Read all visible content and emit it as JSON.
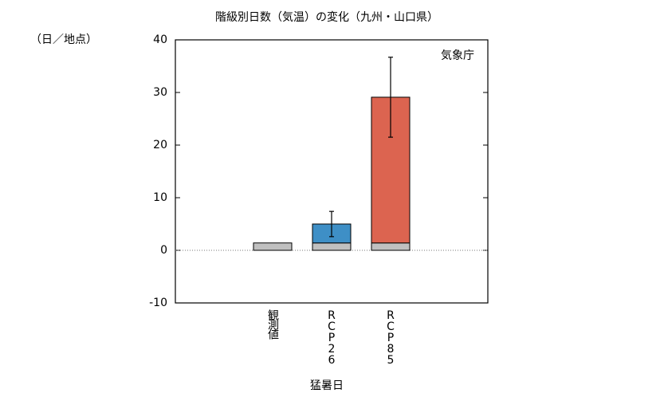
{
  "chart_data": {
    "type": "bar",
    "title": "階級別日数（気温）の変化（九州・山口県）",
    "y_label": "（日／地点）",
    "x_label": "猛暑日",
    "annotation": "気象庁",
    "categories": [
      "観測値",
      "RCP26",
      "RCP85"
    ],
    "series": [
      {
        "color": "#c0c0c0",
        "values": [
          1.4,
          1.4,
          1.4
        ]
      },
      {
        "colors": [
          null,
          "#3e8fc6",
          "#dc6450"
        ],
        "values": [
          null,
          3.6,
          27.7
        ],
        "errors": [
          null,
          2.4,
          7.6
        ]
      }
    ],
    "ylim": [
      -10,
      40
    ],
    "yticks": [
      -10,
      0,
      10,
      20,
      30,
      40
    ],
    "zero_line": true
  }
}
